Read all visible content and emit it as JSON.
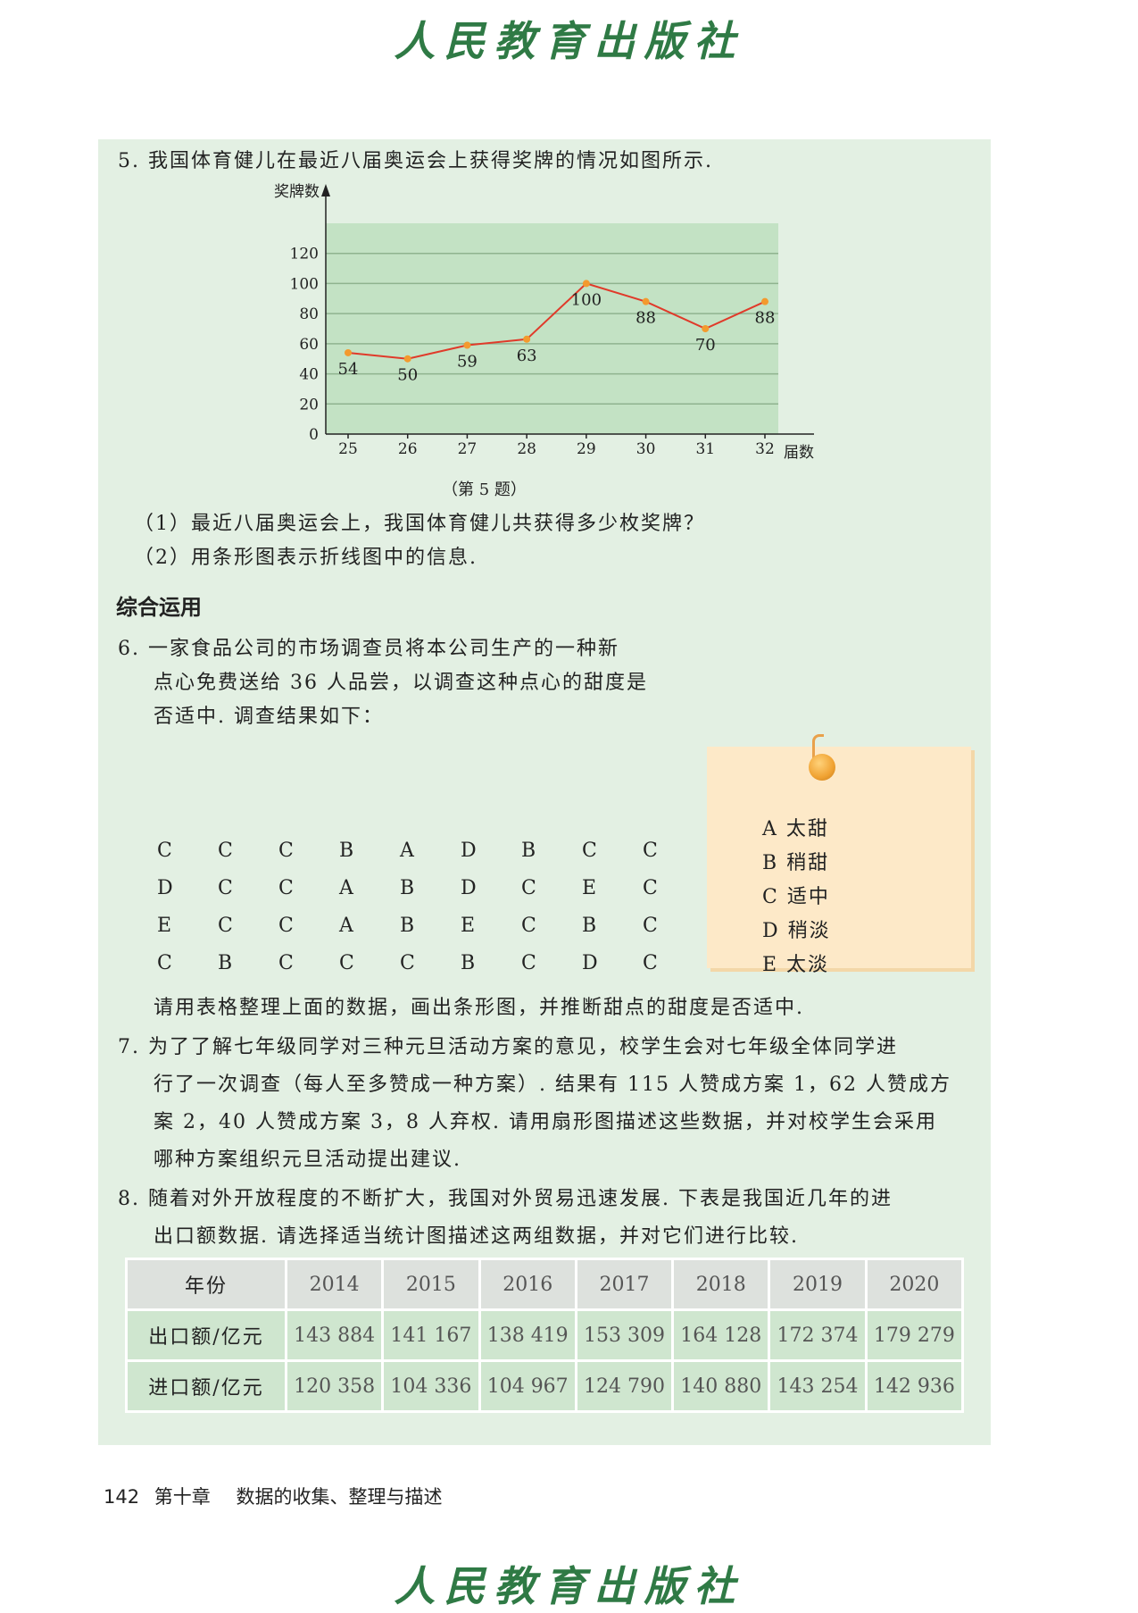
{
  "watermark": "人民教育出版社",
  "q5": {
    "prompt": "5. 我国体育健儿在最近八届奥运会上获得奖牌的情况如图所示.",
    "caption": "（第 5 题）",
    "sub1": "（1）最近八届奥运会上，我国体育健儿共获得多少枚奖牌？",
    "sub2": "（2）用条形图表示折线图中的信息."
  },
  "chart_data": {
    "type": "line",
    "title": "",
    "xlabel": "届数",
    "ylabel": "奖牌数",
    "x": [
      25,
      26,
      27,
      28,
      29,
      30,
      31,
      32
    ],
    "values": [
      54,
      50,
      59,
      63,
      100,
      88,
      70,
      88
    ],
    "yticks": [
      0,
      20,
      40,
      60,
      80,
      100,
      120
    ],
    "ylim": [
      0,
      140
    ],
    "grid": true,
    "colors": {
      "background": "#c3e2c4",
      "line": "#e03a2a",
      "marker": "#f39a2e",
      "gridline": "#8fb38f"
    }
  },
  "section2": {
    "title": "综合运用"
  },
  "q6": {
    "lines": [
      "6. 一家食品公司的市场调查员将本公司生产的一种新",
      "点心免费送给 36 人品尝，以调查这种点心的甜度是",
      "否适中. 调查结果如下："
    ],
    "grid": [
      [
        "C",
        "C",
        "C",
        "B",
        "A",
        "D",
        "B",
        "C",
        "C"
      ],
      [
        "D",
        "C",
        "C",
        "A",
        "B",
        "D",
        "C",
        "E",
        "C"
      ],
      [
        "E",
        "C",
        "C",
        "A",
        "B",
        "E",
        "C",
        "B",
        "C"
      ],
      [
        "C",
        "B",
        "C",
        "C",
        "C",
        "B",
        "C",
        "D",
        "C"
      ]
    ],
    "after": "请用表格整理上面的数据，画出条形图，并推断甜点的甜度是否适中.",
    "legend": [
      "A 太甜",
      "B 稍甜",
      "C 适中",
      "D 稍淡",
      "E 太淡"
    ]
  },
  "q7": {
    "lines": [
      "7. 为了了解七年级同学对三种元旦活动方案的意见，校学生会对七年级全体同学进",
      "行了一次调查（每人至多赞成一种方案）. 结果有 115 人赞成方案 1，62 人赞成方",
      "案 2，40 人赞成方案 3，8 人弃权. 请用扇形图描述这些数据，并对校学生会采用",
      "哪种方案组织元旦活动提出建议."
    ]
  },
  "q8": {
    "lines": [
      "8. 随着对外开放程度的不断扩大，我国对外贸易迅速发展. 下表是我国近几年的进",
      "出口额数据. 请选择适当统计图描述这两组数据，并对它们进行比较."
    ],
    "table": {
      "header": [
        "年份",
        "2014",
        "2015",
        "2016",
        "2017",
        "2018",
        "2019",
        "2020"
      ],
      "rows": [
        [
          "出口额/亿元",
          "143 884",
          "141 167",
          "138 419",
          "153 309",
          "164 128",
          "172 374",
          "179 279"
        ],
        [
          "进口额/亿元",
          "120 358",
          "104 336",
          "104 967",
          "124 790",
          "140 880",
          "143 254",
          "142 936"
        ]
      ]
    }
  },
  "footer": {
    "page": "142",
    "chapter": "第十章",
    "title": "数据的收集、整理与描述"
  }
}
